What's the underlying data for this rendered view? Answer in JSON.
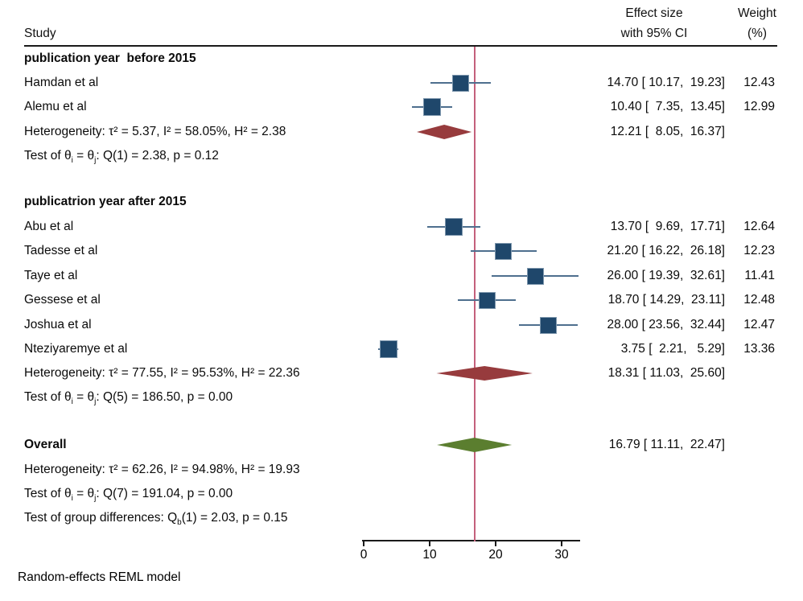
{
  "title_area": {
    "study_col": "Study",
    "effect_col_line1": "Effect size",
    "effect_col_line2": "with 95% CI",
    "weight_col_line1": "Weight",
    "weight_col_line2": "(%)"
  },
  "footer": {
    "note": "Random-effects REML model"
  },
  "colors": {
    "square_fill": "#1F476B",
    "square_border": "#7E97AD",
    "whisker": "#4E6F8E",
    "diamond_subgroup": "#973B3D",
    "diamond_overall": "#5B7E2F",
    "reference_line": "#C4607C",
    "axis": "#1a1a1a"
  },
  "chart_data": {
    "type": "scatter",
    "subtype": "forest-plot",
    "title": "",
    "xlabel": "",
    "ylabel": "",
    "axis": {
      "xmin": 0,
      "xmax": 30,
      "xticks": [
        0,
        10,
        20,
        30
      ],
      "grid": false
    },
    "reference_line_value": 16.79,
    "model_note": "Random-effects REML model",
    "rows": [
      {
        "kind": "group",
        "label": "publication year  before 2015"
      },
      {
        "kind": "study",
        "label": "Hamdan et al",
        "est": 14.7,
        "lo": 10.17,
        "hi": 19.23,
        "weight": 12.43,
        "effect_label": "14.70 [ 10.17,  19.23]",
        "weight_label": "12.43"
      },
      {
        "kind": "study",
        "label": "Alemu et al",
        "est": 10.4,
        "lo": 7.35,
        "hi": 13.45,
        "weight": 12.99,
        "effect_label": "10.40 [  7.35,  13.45]",
        "weight_label": "12.99"
      },
      {
        "kind": "summary",
        "label": "Heterogeneity: τ² = 5.37, I² = 58.05%, H² = 2.38",
        "est": 12.21,
        "lo": 8.05,
        "hi": 16.37,
        "effect_label": "12.21 [  8.05,  16.37]",
        "diamond": "subgroup"
      },
      {
        "kind": "stat",
        "label_parts": [
          [
            "t",
            "Test of θ"
          ],
          [
            "s",
            "i"
          ],
          [
            "t",
            " = θ"
          ],
          [
            "s",
            "j"
          ],
          [
            "t",
            ": Q(1) = 2.38, p = 0.12"
          ]
        ]
      },
      {
        "kind": "group",
        "label": "publicatrion year after 2015"
      },
      {
        "kind": "study",
        "label": "Abu et al",
        "est": 13.7,
        "lo": 9.69,
        "hi": 17.71,
        "weight": 12.64,
        "effect_label": "13.70 [  9.69,  17.71]",
        "weight_label": "12.64"
      },
      {
        "kind": "study",
        "label": "Tadesse et al",
        "est": 21.2,
        "lo": 16.22,
        "hi": 26.18,
        "weight": 12.23,
        "effect_label": "21.20 [ 16.22,  26.18]",
        "weight_label": "12.23"
      },
      {
        "kind": "study",
        "label": "Taye et al",
        "est": 26.0,
        "lo": 19.39,
        "hi": 32.61,
        "weight": 11.41,
        "effect_label": "26.00 [ 19.39,  32.61]",
        "weight_label": "11.41"
      },
      {
        "kind": "study",
        "label": "Gessese et al",
        "est": 18.7,
        "lo": 14.29,
        "hi": 23.11,
        "weight": 12.48,
        "effect_label": "18.70 [ 14.29,  23.11]",
        "weight_label": "12.48"
      },
      {
        "kind": "study",
        "label": "Joshua et al",
        "est": 28.0,
        "lo": 23.56,
        "hi": 32.44,
        "weight": 12.47,
        "effect_label": "28.00 [ 23.56,  32.44]",
        "weight_label": "12.47"
      },
      {
        "kind": "study",
        "label": "Nteziyaremye et al",
        "est": 3.75,
        "lo": 2.21,
        "hi": 5.29,
        "weight": 13.36,
        "effect_label": " 3.75 [  2.21,   5.29]",
        "weight_label": "13.36"
      },
      {
        "kind": "summary",
        "label": "Heterogeneity: τ² = 77.55, I² = 95.53%, H² = 22.36",
        "est": 18.31,
        "lo": 11.03,
        "hi": 25.6,
        "effect_label": "18.31 [ 11.03,  25.60]",
        "diamond": "subgroup"
      },
      {
        "kind": "stat",
        "label_parts": [
          [
            "t",
            "Test of θ"
          ],
          [
            "s",
            "i"
          ],
          [
            "t",
            " = θ"
          ],
          [
            "s",
            "j"
          ],
          [
            "t",
            ": Q(5) = 186.50, p = 0.00"
          ]
        ]
      },
      {
        "kind": "overall",
        "label": "Overall",
        "est": 16.79,
        "lo": 11.11,
        "hi": 22.47,
        "effect_label": "16.79 [ 11.11,  22.47]",
        "diamond": "overall"
      },
      {
        "kind": "stat",
        "label": "Heterogeneity: τ² = 62.26, I² = 94.98%, H² = 19.93"
      },
      {
        "kind": "stat",
        "label_parts": [
          [
            "t",
            "Test of θ"
          ],
          [
            "s",
            "i"
          ],
          [
            "t",
            " = θ"
          ],
          [
            "s",
            "j"
          ],
          [
            "t",
            ": Q(7) = 191.04, p = 0.00"
          ]
        ]
      },
      {
        "kind": "stat",
        "label_parts": [
          [
            "t",
            "Test of group differences: Q"
          ],
          [
            "s",
            "b"
          ],
          [
            "t",
            "(1) = 2.03, p = 0.15"
          ]
        ]
      }
    ]
  }
}
